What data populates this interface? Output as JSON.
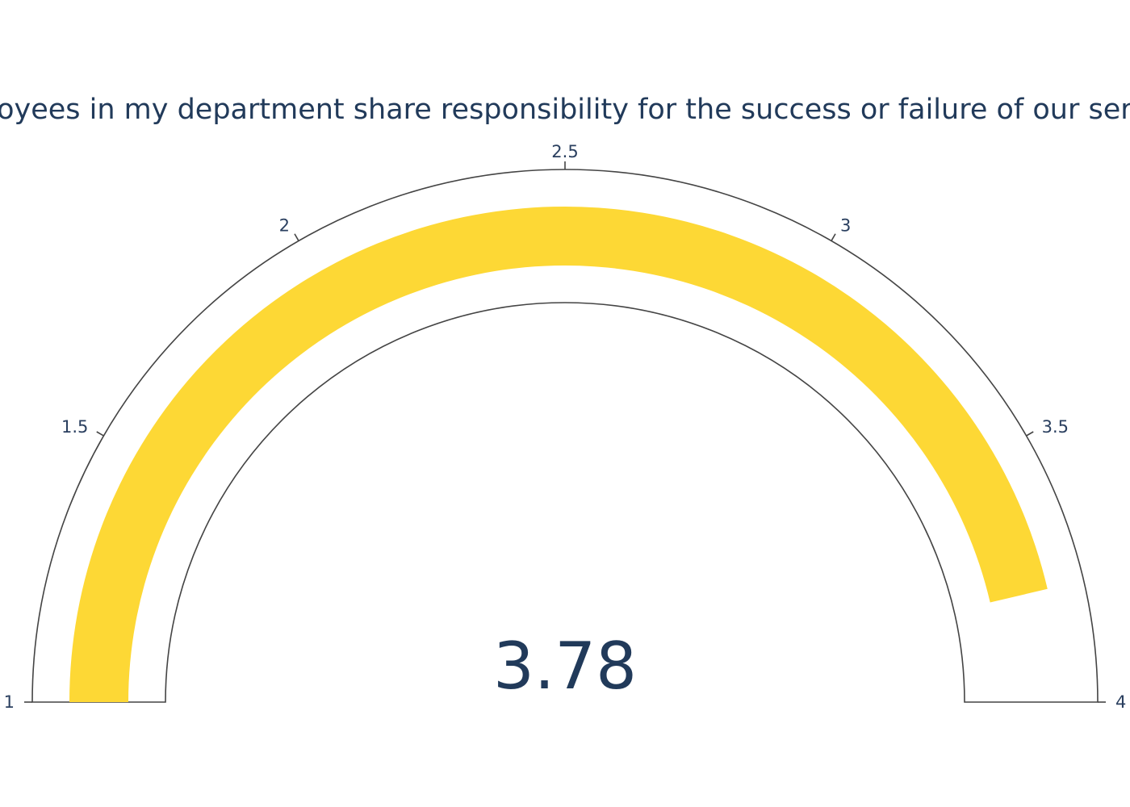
{
  "chart_data": {
    "type": "gauge",
    "title": "Employees in my department share responsibility for the success or failure of our services",
    "value": 3.78,
    "value_label": "3.78",
    "range": [
      1,
      4
    ],
    "tick_labels": [
      "1",
      "1.5",
      "2",
      "2.5",
      "3",
      "3.5",
      "4"
    ],
    "bar_color": "#fdd835",
    "outline_color": "#444444",
    "text_color": "#213a5a"
  }
}
